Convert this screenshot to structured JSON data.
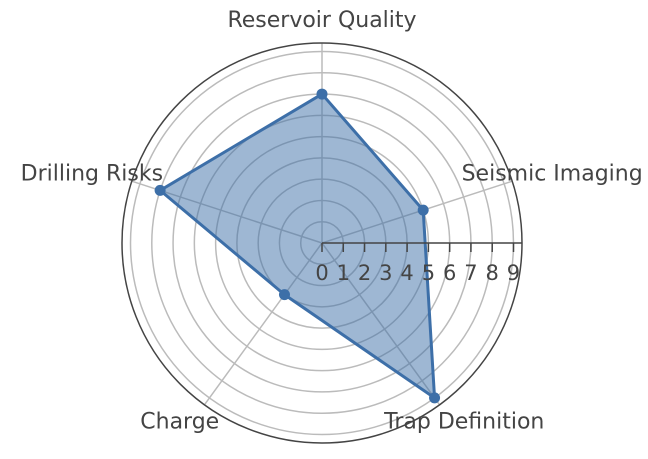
{
  "chart_data": {
    "type": "radar",
    "categories": [
      "Reservoir Quality",
      "Seismic Imaging",
      "Trap Definition",
      "Charge",
      "Drilling Risks"
    ],
    "values": [
      7,
      5,
      9,
      3,
      8
    ],
    "color": "#3d6fa8",
    "rlim": [
      0,
      9.4
    ],
    "rticks": [
      0,
      1,
      2,
      3,
      4,
      5,
      6,
      7,
      8,
      9
    ],
    "grid": true
  }
}
